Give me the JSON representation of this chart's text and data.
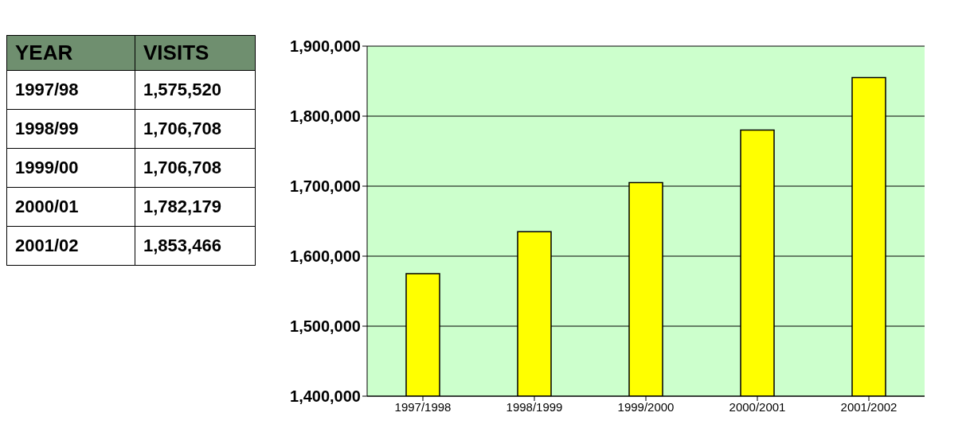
{
  "chart_data": {
    "type": "bar",
    "categories": [
      "1997/1998",
      "1998/1999",
      "1999/2000",
      "2000/2001",
      "2001/2002"
    ],
    "values": [
      1575000,
      1635000,
      1705000,
      1780000,
      1855000
    ],
    "color": "#ffff00",
    "ylim": [
      1400000,
      1900000
    ],
    "yticks": [
      {
        "value": 1400000,
        "label": "1,400,000"
      },
      {
        "value": 1500000,
        "label": "1,500,000"
      },
      {
        "value": 1600000,
        "label": "1,600,000"
      },
      {
        "value": 1700000,
        "label": "1,700,000"
      },
      {
        "value": 1800000,
        "label": "1,800,000"
      },
      {
        "value": 1900000,
        "label": "1,900,000"
      }
    ],
    "grid": "y",
    "annotations": [
      "YEAR",
      "VISITS",
      "1997/98",
      "1,575,520",
      "1998/99",
      "1,706,708",
      "1999/00",
      "1,706,708",
      "2000/01",
      "1,782,179",
      "2001/02",
      "1,853,466"
    ]
  }
}
